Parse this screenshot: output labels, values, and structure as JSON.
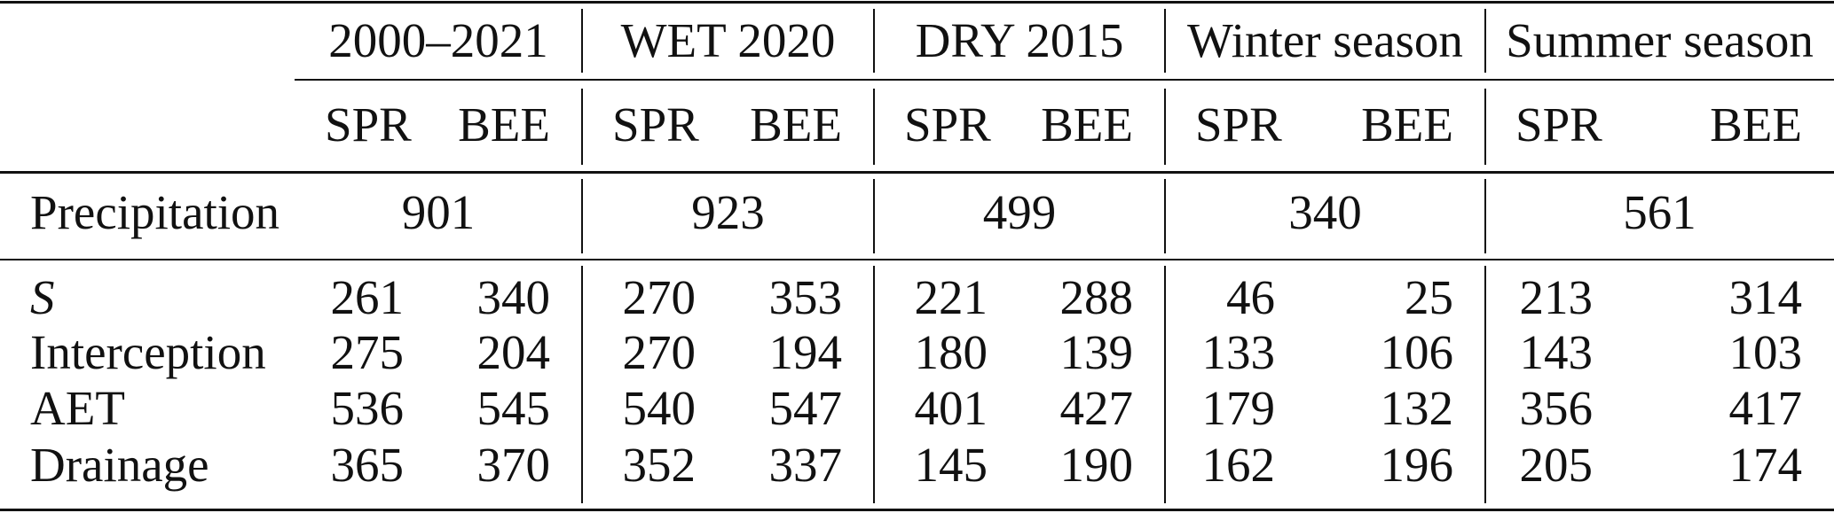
{
  "table": {
    "groups": [
      "2000–2021",
      "WET 2020",
      "DRY 2015",
      "Winter season",
      "Summer season"
    ],
    "subheaders": [
      "SPR",
      "BEE",
      "SPR",
      "BEE",
      "SPR",
      "BEE",
      "SPR",
      "BEE",
      "SPR",
      "BEE"
    ],
    "precipitation": {
      "label": "Precipitation",
      "values": [
        901,
        923,
        499,
        340,
        561
      ]
    },
    "rows": [
      {
        "label": "S",
        "values": [
          261,
          340,
          270,
          353,
          221,
          288,
          46,
          25,
          213,
          314
        ]
      },
      {
        "label": "Interception",
        "values": [
          275,
          204,
          270,
          194,
          180,
          139,
          133,
          106,
          143,
          103
        ]
      },
      {
        "label": "AET",
        "values": [
          536,
          545,
          540,
          547,
          401,
          427,
          179,
          132,
          356,
          417
        ]
      },
      {
        "label": "Drainage",
        "values": [
          365,
          370,
          352,
          337,
          145,
          190,
          162,
          196,
          205,
          174
        ]
      }
    ]
  }
}
